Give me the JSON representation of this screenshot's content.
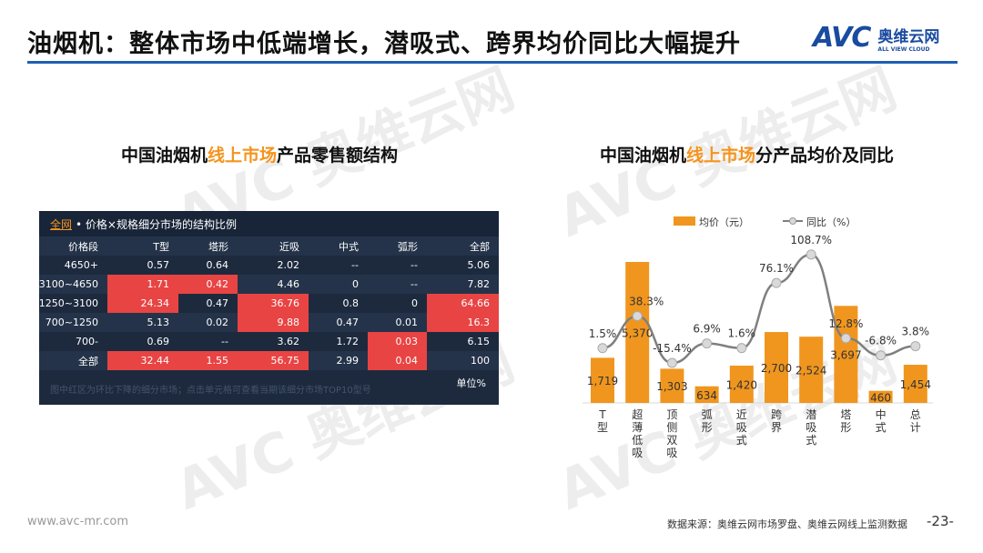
{
  "title": "油烟机：整体市场中低端增长，潜吸式、跨界均价同比大幅提升",
  "logo": {
    "mark": "AVC",
    "cn": "奥维云网",
    "en": "ALL VIEW CLOUD"
  },
  "left": {
    "subtitle_a": "中国油烟机",
    "subtitle_hl": "线上市场",
    "subtitle_b": "产品零售额结构",
    "table": {
      "tab": "全网",
      "caption": "• 价格×规格细分市场的结构比例",
      "columns": [
        "价格段",
        "T型",
        "塔形",
        "近吸",
        "中式",
        "弧形",
        "全部"
      ],
      "rows": [
        {
          "cells": [
            "4650+",
            "0.57",
            "0.64",
            "2.02",
            "--",
            "--",
            "5.06"
          ],
          "red": [
            0,
            0,
            0,
            0,
            0,
            0,
            0
          ]
        },
        {
          "cells": [
            "3100~4650",
            "1.71",
            "0.42",
            "4.46",
            "0",
            "--",
            "7.82"
          ],
          "red": [
            0,
            1,
            1,
            0,
            0,
            0,
            0
          ]
        },
        {
          "cells": [
            "1250~3100",
            "24.34",
            "0.47",
            "36.76",
            "0.8",
            "0",
            "64.66"
          ],
          "red": [
            0,
            1,
            0,
            1,
            0,
            0,
            1
          ]
        },
        {
          "cells": [
            "700~1250",
            "5.13",
            "0.02",
            "9.88",
            "0.47",
            "0.01",
            "16.3"
          ],
          "red": [
            0,
            0,
            0,
            1,
            0,
            0,
            1
          ]
        },
        {
          "cells": [
            "700-",
            "0.69",
            "--",
            "3.62",
            "1.72",
            "0.03",
            "6.15"
          ],
          "red": [
            0,
            0,
            0,
            0,
            0,
            1,
            0
          ]
        },
        {
          "cells": [
            "全部",
            "32.44",
            "1.55",
            "56.75",
            "2.99",
            "0.04",
            "100"
          ],
          "red": [
            0,
            1,
            1,
            1,
            0,
            1,
            0
          ]
        }
      ],
      "footnote": "图中红区为环比下降的细分市场；点击单元格可查看当期该细分市场TOP10型号",
      "unit": "单位%"
    }
  },
  "right": {
    "subtitle_a": "中国油烟机",
    "subtitle_hl": "线上市场",
    "subtitle_b": "分产品均价及同比"
  },
  "chart_data": {
    "type": "bar+line",
    "legend": [
      "均价（元）",
      "同比（%）"
    ],
    "categories": [
      "T型",
      "超薄低吸",
      "顶侧双吸",
      "弧形",
      "近吸式",
      "跨界",
      "潜吸式",
      "塔形",
      "中式",
      "总计"
    ],
    "series": [
      {
        "name": "均价（元）",
        "type": "bar",
        "values": [
          1719,
          5370,
          1303,
          634,
          1420,
          2700,
          2524,
          3697,
          460,
          1454
        ],
        "labels": [
          "1,719",
          "5,370",
          "1,303",
          "634",
          "1,420",
          "2,700",
          "2,524",
          "3,697",
          "460",
          "1,454"
        ]
      },
      {
        "name": "同比（%）",
        "type": "line",
        "values": [
          1.5,
          38.3,
          -15.4,
          6.9,
          1.6,
          76.1,
          108.7,
          12.8,
          -6.8,
          3.8
        ],
        "labels": [
          "1.5%",
          "38.3%",
          "-15.4%",
          "6.9%",
          "1.6%",
          "76.1%",
          "108.7%",
          "12.8%",
          "-6.8%",
          "3.8%"
        ]
      }
    ],
    "colors": {
      "bar": "#f0961e",
      "line": "#7f7f7f",
      "marker": "#d9d9d9"
    }
  },
  "footer": {
    "url": "www.avc-mr.com",
    "source": "数据来源：奥维云网市场罗盘、奥维云网线上监测数据",
    "page": "-23-"
  }
}
